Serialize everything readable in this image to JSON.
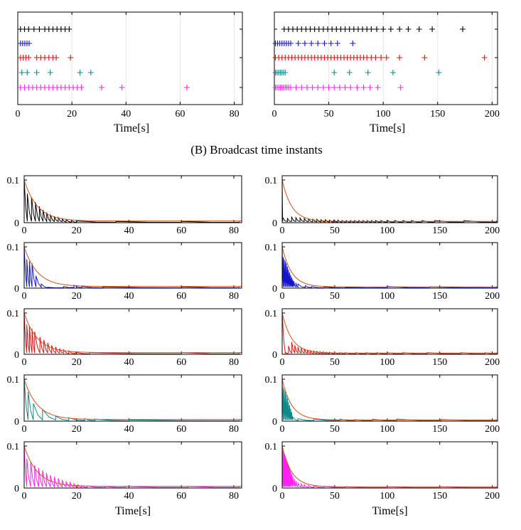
{
  "caption": "(B) Broadcast time instants",
  "colors": {
    "agents": [
      "#000000",
      "#1414cc",
      "#dd1111",
      "#0f8a8a",
      "#ff22ee"
    ],
    "threshold": "#d2501e"
  },
  "chart_data": [
    {
      "type": "scatter",
      "id": "broadcast-left",
      "xlabel": "Time[s]",
      "xlim": [
        0,
        83
      ],
      "xticks": [
        0,
        20,
        40,
        60,
        80
      ],
      "rows": [
        {
          "agent": 1,
          "x": [
            1,
            2.5,
            4,
            6,
            8,
            10,
            11.5,
            13,
            14.5,
            16,
            17.5,
            19
          ]
        },
        {
          "agent": 2,
          "x": [
            1,
            1.8,
            2.6,
            3.4,
            4.2
          ]
        },
        {
          "agent": 3,
          "x": [
            1,
            2,
            3,
            4,
            7,
            8.5,
            10,
            11.5,
            13,
            14.2,
            19.5
          ]
        },
        {
          "agent": 4,
          "x": [
            1.5,
            3.5,
            7,
            12,
            23,
            27
          ]
        },
        {
          "agent": 5,
          "x": [
            1,
            2.5,
            4,
            5.5,
            7,
            8.5,
            10,
            11.5,
            13,
            14.5,
            16,
            17.5,
            19,
            20.5,
            22,
            23.5,
            31,
            38.5,
            62.5
          ]
        }
      ]
    },
    {
      "type": "scatter",
      "id": "broadcast-right",
      "xlabel": "Time[s]",
      "xlim": [
        0,
        205
      ],
      "xticks": [
        0,
        50,
        100,
        150,
        200
      ],
      "rows": [
        {
          "agent": 1,
          "x": [
            9,
            13,
            17,
            21,
            25,
            29,
            33,
            37,
            41,
            45,
            49,
            53,
            57,
            61,
            65,
            69,
            73,
            77,
            81,
            85,
            89,
            94,
            100,
            107,
            115,
            123,
            133,
            145,
            173
          ]
        },
        {
          "agent": 2,
          "x": [
            1,
            3,
            5,
            7,
            9,
            11,
            13,
            15,
            22,
            28,
            34,
            40,
            46,
            52,
            58,
            72
          ]
        },
        {
          "agent": 3,
          "x": [
            1,
            4,
            7,
            10,
            13,
            16,
            19,
            22,
            25,
            28,
            31,
            34,
            37,
            40,
            43,
            46,
            49,
            52,
            55,
            58,
            61,
            64,
            67,
            70,
            73,
            76,
            79,
            82,
            85,
            89,
            93,
            98,
            103,
            115,
            138,
            193
          ]
        },
        {
          "agent": 4,
          "x": [
            1,
            2.5,
            4,
            5.5,
            7,
            8.5,
            10,
            55,
            69,
            86,
            109,
            151
          ]
        },
        {
          "agent": 5,
          "x": [
            1,
            2.5,
            4,
            5.5,
            7,
            8.5,
            10,
            11.5,
            13,
            15,
            20,
            25,
            30,
            35,
            40,
            45,
            50,
            55,
            60,
            65,
            70,
            76,
            82,
            88,
            95,
            116
          ]
        }
      ]
    },
    {
      "type": "line",
      "id": "error-left",
      "xlabel": "Time[s]",
      "xlim": [
        0,
        83
      ],
      "ylim": [
        0,
        0.1
      ],
      "xticks": [
        0,
        20,
        40,
        60,
        80
      ],
      "yticks": [
        0,
        0.1
      ],
      "threshold": {
        "c": 0.1,
        "tau": 5,
        "floor": 0.004
      },
      "panels": [
        {
          "agent": 1,
          "peaks": [
            [
              0,
              0.1
            ],
            [
              1.2,
              0.068
            ],
            [
              2.8,
              0.06
            ],
            [
              4.3,
              0.048
            ],
            [
              5.8,
              0.038
            ],
            [
              7.2,
              0.03
            ],
            [
              8.6,
              0.024
            ],
            [
              10,
              0.019
            ],
            [
              11.5,
              0.015
            ],
            [
              13,
              0.012
            ],
            [
              14.5,
              0.009
            ],
            [
              16,
              0.007
            ],
            [
              18,
              0.005
            ],
            [
              20,
              0.004
            ],
            [
              35,
              0.003
            ],
            [
              60,
              0.003
            ],
            [
              82,
              0.003
            ]
          ]
        },
        {
          "agent": 2,
          "peaks": [
            [
              0,
              0.1
            ],
            [
              1,
              0.07
            ],
            [
              2,
              0.065
            ],
            [
              3,
              0.06
            ],
            [
              4.5,
              0.03
            ],
            [
              6.5,
              0.01
            ],
            [
              9,
              0.002
            ],
            [
              15,
              0.004
            ],
            [
              19,
              0.007
            ],
            [
              22,
              0.004
            ],
            [
              30,
              0.003
            ],
            [
              60,
              0.003
            ],
            [
              82,
              0.003
            ]
          ]
        },
        {
          "agent": 3,
          "peaks": [
            [
              0,
              0.1
            ],
            [
              1,
              0.072
            ],
            [
              2,
              0.07
            ],
            [
              3,
              0.062
            ],
            [
              4,
              0.055
            ],
            [
              6,
              0.042
            ],
            [
              7.5,
              0.035
            ],
            [
              9,
              0.028
            ],
            [
              10.5,
              0.022
            ],
            [
              12,
              0.018
            ],
            [
              13.5,
              0.014
            ],
            [
              15,
              0.011
            ],
            [
              17,
              0.008
            ],
            [
              19.5,
              0.005
            ],
            [
              25,
              0.004
            ],
            [
              60,
              0.004
            ],
            [
              82,
              0.004
            ]
          ]
        },
        {
          "agent": 4,
          "peaks": [
            [
              0,
              0.1
            ],
            [
              1.5,
              0.07
            ],
            [
              3.5,
              0.042
            ],
            [
              7,
              0.028
            ],
            [
              12,
              0.012
            ],
            [
              17,
              0.008
            ],
            [
              23,
              0.006
            ],
            [
              27,
              0.005
            ],
            [
              40,
              0.003
            ],
            [
              82,
              0.003
            ]
          ]
        },
        {
          "agent": 5,
          "peaks": [
            [
              0,
              0.1
            ],
            [
              1,
              0.07
            ],
            [
              2.5,
              0.062
            ],
            [
              4,
              0.055
            ],
            [
              5.5,
              0.048
            ],
            [
              7,
              0.042
            ],
            [
              8.5,
              0.036
            ],
            [
              10,
              0.031
            ],
            [
              11.5,
              0.027
            ],
            [
              13,
              0.023
            ],
            [
              14.5,
              0.019
            ],
            [
              16,
              0.016
            ],
            [
              17.5,
              0.013
            ],
            [
              19,
              0.01
            ],
            [
              20.5,
              0.008
            ],
            [
              22,
              0.006
            ],
            [
              24,
              0.005
            ],
            [
              31,
              0.004
            ],
            [
              38.5,
              0.004
            ],
            [
              62.5,
              0.004
            ],
            [
              82,
              0.004
            ]
          ]
        }
      ]
    },
    {
      "type": "line",
      "id": "error-right",
      "xlabel": "Time[s]",
      "xlim": [
        0,
        205
      ],
      "ylim": [
        0,
        0.1
      ],
      "xticks": [
        0,
        50,
        100,
        150,
        200
      ],
      "yticks": [
        0,
        0.1
      ],
      "threshold": {
        "c": 0.1,
        "tau": 9,
        "floor": 0.003
      },
      "panels": [
        {
          "agent": 1,
          "peaks": [
            [
              0,
              0.1
            ],
            [
              0.5,
              0.012
            ],
            [
              5,
              0.01
            ],
            [
              9,
              0.013
            ],
            [
              13,
              0.012
            ],
            [
              17,
              0.011
            ],
            [
              21,
              0.01
            ],
            [
              25,
              0.009
            ],
            [
              29,
              0.008
            ],
            [
              33,
              0.008
            ],
            [
              37,
              0.007
            ],
            [
              41,
              0.007
            ],
            [
              45,
              0.006
            ],
            [
              49,
              0.006
            ],
            [
              53,
              0.006
            ],
            [
              57,
              0.005
            ],
            [
              61,
              0.005
            ],
            [
              65,
              0.005
            ],
            [
              69,
              0.005
            ],
            [
              73,
              0.005
            ],
            [
              77,
              0.005
            ],
            [
              81,
              0.005
            ],
            [
              85,
              0.005
            ],
            [
              89,
              0.005
            ],
            [
              94,
              0.005
            ],
            [
              100,
              0.005
            ],
            [
              107,
              0.005
            ],
            [
              115,
              0.005
            ],
            [
              123,
              0.005
            ],
            [
              133,
              0.005
            ],
            [
              145,
              0.005
            ],
            [
              173,
              0.005
            ],
            [
              204,
              0.005
            ]
          ]
        },
        {
          "agent": 2,
          "peaks": [
            [
              0,
              0.1
            ],
            [
              1,
              0.075
            ],
            [
              2,
              0.07
            ],
            [
              3,
              0.065
            ],
            [
              4,
              0.06
            ],
            [
              5,
              0.052
            ],
            [
              6,
              0.045
            ],
            [
              7,
              0.038
            ],
            [
              8,
              0.032
            ],
            [
              9,
              0.026
            ],
            [
              10,
              0.021
            ],
            [
              11,
              0.017
            ],
            [
              13,
              0.013
            ],
            [
              15,
              0.01
            ],
            [
              22,
              0.006
            ],
            [
              28,
              0.004
            ],
            [
              40,
              0.003
            ],
            [
              60,
              0.002
            ],
            [
              100,
              0.004
            ],
            [
              140,
              0.003
            ],
            [
              204,
              0.003
            ]
          ]
        },
        {
          "agent": 3,
          "peaks": [
            [
              0,
              0.1
            ],
            [
              3,
              0.005
            ],
            [
              6,
              0.02
            ],
            [
              9,
              0.03
            ],
            [
              12,
              0.022
            ],
            [
              15,
              0.018
            ],
            [
              18,
              0.015
            ],
            [
              21,
              0.013
            ],
            [
              24,
              0.011
            ],
            [
              27,
              0.009
            ],
            [
              30,
              0.008
            ],
            [
              33,
              0.007
            ],
            [
              36,
              0.006
            ],
            [
              39,
              0.006
            ],
            [
              42,
              0.005
            ],
            [
              45,
              0.005
            ],
            [
              50,
              0.004
            ],
            [
              55,
              0.004
            ],
            [
              60,
              0.004
            ],
            [
              70,
              0.004
            ],
            [
              80,
              0.004
            ],
            [
              90,
              0.004
            ],
            [
              100,
              0.004
            ],
            [
              115,
              0.004
            ],
            [
              138,
              0.004
            ],
            [
              170,
              0.004
            ],
            [
              193,
              0.004
            ],
            [
              204,
              0.004
            ]
          ]
        },
        {
          "agent": 4,
          "peaks": [
            [
              0,
              0.1
            ],
            [
              1,
              0.08
            ],
            [
              2,
              0.075
            ],
            [
              3,
              0.07
            ],
            [
              4,
              0.062
            ],
            [
              5,
              0.055
            ],
            [
              6,
              0.046
            ],
            [
              7,
              0.038
            ],
            [
              8,
              0.03
            ],
            [
              9,
              0.022
            ],
            [
              10,
              0.01
            ],
            [
              15,
              0.006
            ],
            [
              30,
              0.005
            ],
            [
              55,
              0.005
            ],
            [
              69,
              0.004
            ],
            [
              86,
              0.005
            ],
            [
              109,
              0.005
            ],
            [
              151,
              0.004
            ],
            [
              204,
              0.004
            ]
          ]
        },
        {
          "agent": 5,
          "peaks": [
            [
              0,
              0.1
            ],
            [
              0.8,
              0.09
            ],
            [
              1.6,
              0.085
            ],
            [
              2.4,
              0.08
            ],
            [
              3.2,
              0.075
            ],
            [
              4,
              0.07
            ],
            [
              4.8,
              0.064
            ],
            [
              5.6,
              0.058
            ],
            [
              6.4,
              0.052
            ],
            [
              7.2,
              0.046
            ],
            [
              8,
              0.04
            ],
            [
              9,
              0.034
            ],
            [
              10,
              0.028
            ],
            [
              11.5,
              0.022
            ],
            [
              13,
              0.017
            ],
            [
              15,
              0.013
            ],
            [
              18,
              0.01
            ],
            [
              21,
              0.008
            ],
            [
              25,
              0.006
            ],
            [
              30,
              0.005
            ],
            [
              40,
              0.004
            ],
            [
              60,
              0.003
            ],
            [
              100,
              0.003
            ],
            [
              150,
              0.003
            ],
            [
              204,
              0.003
            ]
          ]
        }
      ]
    }
  ]
}
